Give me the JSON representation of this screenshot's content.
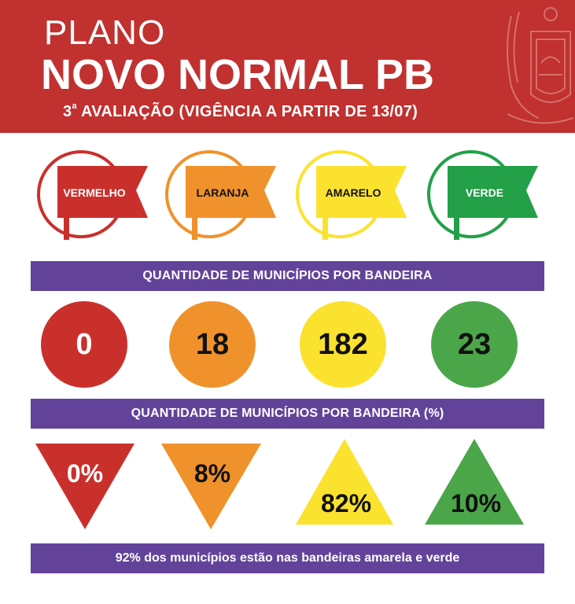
{
  "header": {
    "title_small": "PLANO",
    "title_big": "NOVO NORMAL PB",
    "subtitle_ordinal": "3",
    "subtitle_sup": "a",
    "subtitle_rest": " AVALIAÇÃO (VIGÊNCIA A PARTIR DE 13/07)"
  },
  "flags": [
    {
      "label": "VERMELHO",
      "color": "#c9302c",
      "text_color": "#ffffff"
    },
    {
      "label": "LARANJA",
      "color": "#f0922b",
      "text_color": "#111111"
    },
    {
      "label": "AMARELO",
      "color": "#fbe22f",
      "text_color": "#111111"
    },
    {
      "label": "VERDE",
      "color": "#23a048",
      "text_color": "#ffffff"
    }
  ],
  "banner_counts": "QUANTIDADE DE MUNICÍPIOS POR BANDEIRA",
  "counts": [
    {
      "value": "0",
      "color": "#c9302c",
      "text_color": "#ffffff"
    },
    {
      "value": "18",
      "color": "#f0922b",
      "text_color": "#111111"
    },
    {
      "value": "182",
      "color": "#fbe22f",
      "text_color": "#111111"
    },
    {
      "value": "23",
      "color": "#4ba64a",
      "text_color": "#111111"
    }
  ],
  "banner_percent": "QUANTIDADE DE MUNICÍPIOS POR BANDEIRA (%)",
  "percents": [
    {
      "value": "0%",
      "direction": "down",
      "color": "#c9302c",
      "text_color": "#ffffff"
    },
    {
      "value": "8%",
      "direction": "down",
      "color": "#f0922b",
      "text_color": "#111111"
    },
    {
      "value": "82%",
      "direction": "up",
      "color": "#fbe22f",
      "text_color": "#111111"
    },
    {
      "value": "10%",
      "direction": "up",
      "color": "#4ba64a",
      "text_color": "#111111"
    }
  ],
  "footer_note": "92% dos municípios estão nas bandeiras amarela e verde"
}
